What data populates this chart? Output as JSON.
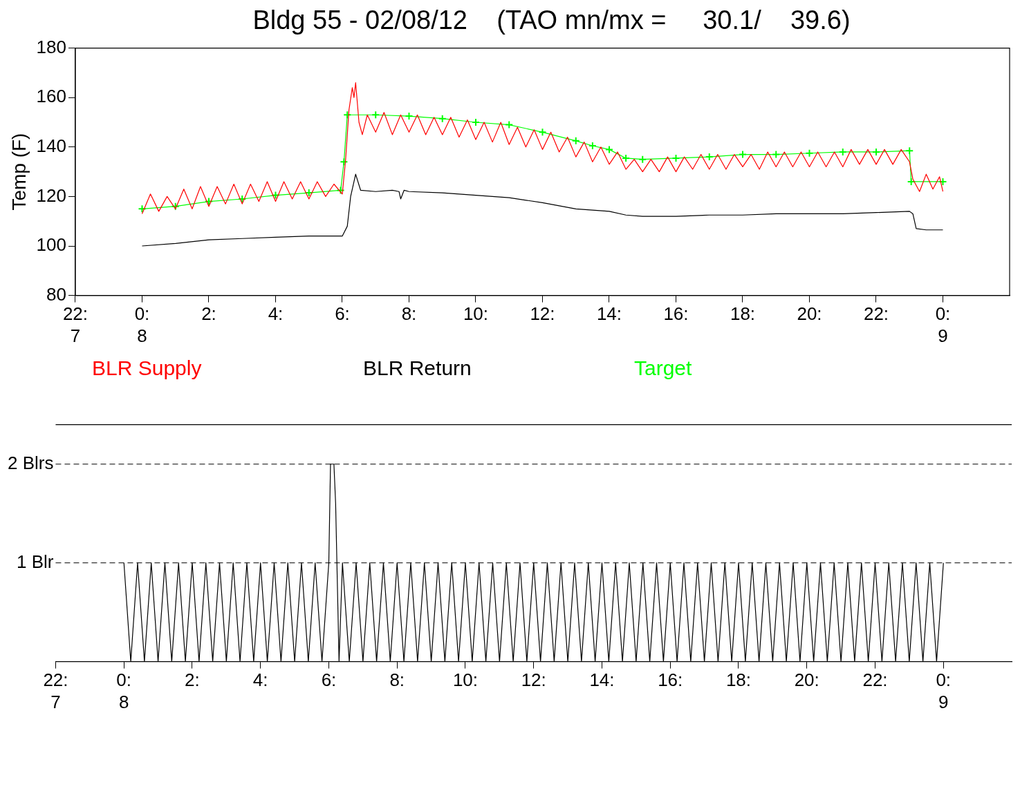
{
  "chart_data": [
    {
      "type": "line",
      "title": "Bldg 55 - 02/08/12    (TAO mn/mx =     30.1/    39.6)",
      "ylabel": "Temp (F)",
      "xlim": [
        -2,
        26
      ],
      "xticks": [
        {
          "value": -2,
          "label": "22:\n7"
        },
        {
          "value": 0,
          "label": "0:\n8"
        },
        {
          "value": 2,
          "label": "2:\n "
        },
        {
          "value": 4,
          "label": "4:\n "
        },
        {
          "value": 6,
          "label": "6:\n "
        },
        {
          "value": 8,
          "label": "8:\n "
        },
        {
          "value": 10,
          "label": "10:\n "
        },
        {
          "value": 12,
          "label": "12:\n "
        },
        {
          "value": 14,
          "label": "14:\n "
        },
        {
          "value": 16,
          "label": "16:\n "
        },
        {
          "value": 18,
          "label": "18:\n "
        },
        {
          "value": 20,
          "label": "20:\n "
        },
        {
          "value": 22,
          "label": "22:\n "
        },
        {
          "value": 24,
          "label": "0:\n9"
        }
      ],
      "ylim": [
        80,
        180
      ],
      "yticks": [
        80,
        100,
        120,
        140,
        160,
        180
      ],
      "grid": false,
      "legend": "bottom",
      "series": [
        {
          "name": "BLR Supply",
          "color": "#ff0000",
          "x": [
            0,
            0.25,
            0.5,
            0.75,
            1,
            1.25,
            1.5,
            1.75,
            2,
            2.25,
            2.5,
            2.75,
            3,
            3.25,
            3.5,
            3.75,
            4,
            4.25,
            4.5,
            4.75,
            5,
            5.25,
            5.5,
            5.75,
            6,
            6.1,
            6.2,
            6.3,
            6.35,
            6.4,
            6.5,
            6.6,
            6.75,
            7,
            7.25,
            7.5,
            7.75,
            8,
            8.25,
            8.5,
            8.75,
            9,
            9.25,
            9.5,
            9.75,
            10,
            10.25,
            10.5,
            10.75,
            11,
            11.25,
            11.5,
            11.75,
            12,
            12.25,
            12.5,
            12.75,
            13,
            13.25,
            13.5,
            13.75,
            14,
            14.25,
            14.5,
            14.75,
            15,
            15.25,
            15.5,
            15.75,
            16,
            16.25,
            16.5,
            16.75,
            17,
            17.25,
            17.5,
            17.75,
            18,
            18.25,
            18.5,
            18.75,
            19,
            19.25,
            19.5,
            19.75,
            20,
            20.25,
            20.5,
            20.75,
            21,
            21.25,
            21.5,
            21.75,
            22,
            22.25,
            22.5,
            22.75,
            23,
            23.1,
            23.3,
            23.5,
            23.7,
            23.9,
            24
          ],
          "values": [
            113,
            121,
            114,
            120,
            115,
            123,
            115,
            124,
            116,
            124,
            117,
            125,
            117,
            125,
            118,
            126,
            118,
            126,
            119,
            126,
            119,
            126,
            120,
            125,
            121,
            135,
            155,
            164,
            160,
            166,
            150,
            145,
            153,
            146,
            154,
            145,
            153,
            146,
            153,
            145,
            152,
            145,
            152,
            144,
            151,
            143,
            150,
            142,
            150,
            141,
            148,
            140,
            147,
            139,
            146,
            138,
            144,
            136,
            142,
            134,
            140,
            133,
            138,
            131,
            135,
            130,
            135,
            130,
            136,
            130,
            136,
            131,
            137,
            131,
            137,
            131,
            137,
            132,
            137,
            131,
            138,
            132,
            138,
            132,
            138,
            132,
            138,
            132,
            138,
            132,
            139,
            133,
            139,
            133,
            139,
            133,
            139,
            134,
            127,
            122,
            129,
            123,
            128,
            122
          ]
        },
        {
          "name": "BLR Return",
          "color": "#000000",
          "x": [
            0,
            1,
            2,
            3,
            4,
            5,
            6,
            6.15,
            6.25,
            6.4,
            6.55,
            7,
            7.5,
            7.7,
            7.75,
            7.85,
            8,
            9,
            10,
            11,
            12,
            13,
            14,
            14.5,
            15,
            16,
            17,
            18,
            19,
            20,
            21,
            22,
            23,
            23.1,
            23.2,
            23.5,
            24
          ],
          "values": [
            100,
            101,
            102.5,
            103,
            103.5,
            104,
            104,
            108,
            120,
            129,
            122.5,
            122,
            122.5,
            122,
            119,
            122.5,
            122,
            121.5,
            120.5,
            119.5,
            117.5,
            115,
            114,
            112.5,
            112,
            112,
            112.5,
            112.5,
            113,
            113,
            113,
            113.5,
            114,
            113,
            107,
            106.5,
            106.5
          ]
        },
        {
          "name": "Target",
          "color": "#00ff00",
          "marker": "cross",
          "x": [
            0,
            1,
            2,
            3,
            4,
            5,
            5.95,
            6.05,
            6.15,
            7,
            8,
            9,
            10,
            11,
            12,
            13,
            13.5,
            14,
            14.5,
            15,
            16,
            17,
            18,
            19,
            20,
            21,
            22,
            23,
            23.05,
            24
          ],
          "values": [
            115,
            116,
            118,
            119,
            120.5,
            121.5,
            122.5,
            134,
            153,
            153,
            152.5,
            151.5,
            150,
            149,
            146,
            142.5,
            140.5,
            139,
            135.5,
            135,
            135.5,
            136,
            137,
            137,
            137.5,
            138,
            138,
            138.5,
            126,
            126
          ]
        }
      ]
    },
    {
      "type": "line",
      "xlim": [
        -2,
        26
      ],
      "xticks": [
        {
          "value": -2,
          "label": "22:\n7"
        },
        {
          "value": 0,
          "label": "0:\n8"
        },
        {
          "value": 2,
          "label": "2:\n "
        },
        {
          "value": 4,
          "label": "4:\n "
        },
        {
          "value": 6,
          "label": "6:\n "
        },
        {
          "value": 8,
          "label": "8:\n "
        },
        {
          "value": 10,
          "label": "10:\n "
        },
        {
          "value": 12,
          "label": "12:\n "
        },
        {
          "value": 14,
          "label": "14:\n "
        },
        {
          "value": 16,
          "label": "16:\n "
        },
        {
          "value": 18,
          "label": "18:\n "
        },
        {
          "value": 20,
          "label": "20:\n "
        },
        {
          "value": 22,
          "label": "22:\n "
        },
        {
          "value": 24,
          "label": "0:\n9"
        }
      ],
      "ylim": [
        0,
        2.4
      ],
      "yticks": [
        {
          "value": 1,
          "label": "1 Blr"
        },
        {
          "value": 2,
          "label": "2 Blrs"
        }
      ],
      "grid": false,
      "ref_lines": [
        {
          "axis": "y",
          "value": 1,
          "color": "#000000",
          "line_style": "dashed"
        },
        {
          "axis": "y",
          "value": 2,
          "color": "#000000",
          "line_style": "dashed"
        }
      ],
      "series": [
        {
          "color": "#000000",
          "x": [
            0,
            0.2,
            0.4,
            0.6,
            0.8,
            1,
            1.2,
            1.4,
            1.6,
            1.8,
            2,
            2.2,
            2.4,
            2.6,
            2.8,
            3,
            3.2,
            3.4,
            3.6,
            3.8,
            4,
            4.2,
            4.4,
            4.6,
            4.8,
            5,
            5.2,
            5.4,
            5.6,
            5.8,
            6,
            6.05,
            6.15,
            6.2,
            6.3,
            6.4,
            6.6,
            6.8,
            7,
            7.2,
            7.4,
            7.6,
            7.8,
            8,
            8.2,
            8.4,
            8.6,
            8.8,
            9,
            9.2,
            9.4,
            9.6,
            9.8,
            10,
            10.2,
            10.4,
            10.6,
            10.8,
            11,
            11.2,
            11.4,
            11.6,
            11.8,
            12,
            12.2,
            12.4,
            12.6,
            12.8,
            13,
            13.2,
            13.4,
            13.6,
            13.8,
            14,
            14.2,
            14.4,
            14.6,
            14.8,
            15,
            15.2,
            15.4,
            15.6,
            15.8,
            16,
            16.2,
            16.4,
            16.6,
            16.8,
            17,
            17.2,
            17.4,
            17.6,
            17.8,
            18,
            18.2,
            18.4,
            18.6,
            18.8,
            19,
            19.2,
            19.4,
            19.6,
            19.8,
            20,
            20.2,
            20.4,
            20.6,
            20.8,
            21,
            21.2,
            21.4,
            21.6,
            21.8,
            22,
            22.2,
            22.4,
            22.6,
            22.8,
            23,
            23.2,
            23.4,
            23.6,
            23.8,
            24
          ],
          "values": [
            1,
            0,
            1,
            0,
            1,
            0,
            1,
            0,
            1,
            0,
            1,
            0,
            1,
            0,
            1,
            0,
            1,
            0,
            1,
            0,
            1,
            0,
            1,
            0,
            1,
            0,
            1,
            0,
            1,
            0,
            1,
            2,
            2,
            1.6,
            0,
            1,
            0,
            1,
            0,
            1,
            0,
            1,
            0,
            1,
            0,
            1,
            0,
            1,
            0,
            1,
            0,
            1,
            0,
            1,
            0,
            1,
            0,
            1,
            0,
            1,
            0,
            1,
            0,
            1,
            0,
            1,
            0,
            1,
            0,
            1,
            0,
            1,
            0,
            1,
            0,
            1,
            0,
            1,
            0,
            1,
            0,
            1,
            0,
            1,
            0,
            1,
            0,
            1,
            0,
            1,
            0,
            1,
            0,
            1,
            0,
            1,
            0,
            1,
            0,
            1,
            0,
            1,
            0,
            1,
            0,
            1,
            0,
            1,
            0,
            1,
            0,
            1,
            0,
            1,
            0,
            1,
            0,
            1,
            0,
            1,
            0,
            1,
            0,
            1
          ]
        }
      ]
    }
  ]
}
